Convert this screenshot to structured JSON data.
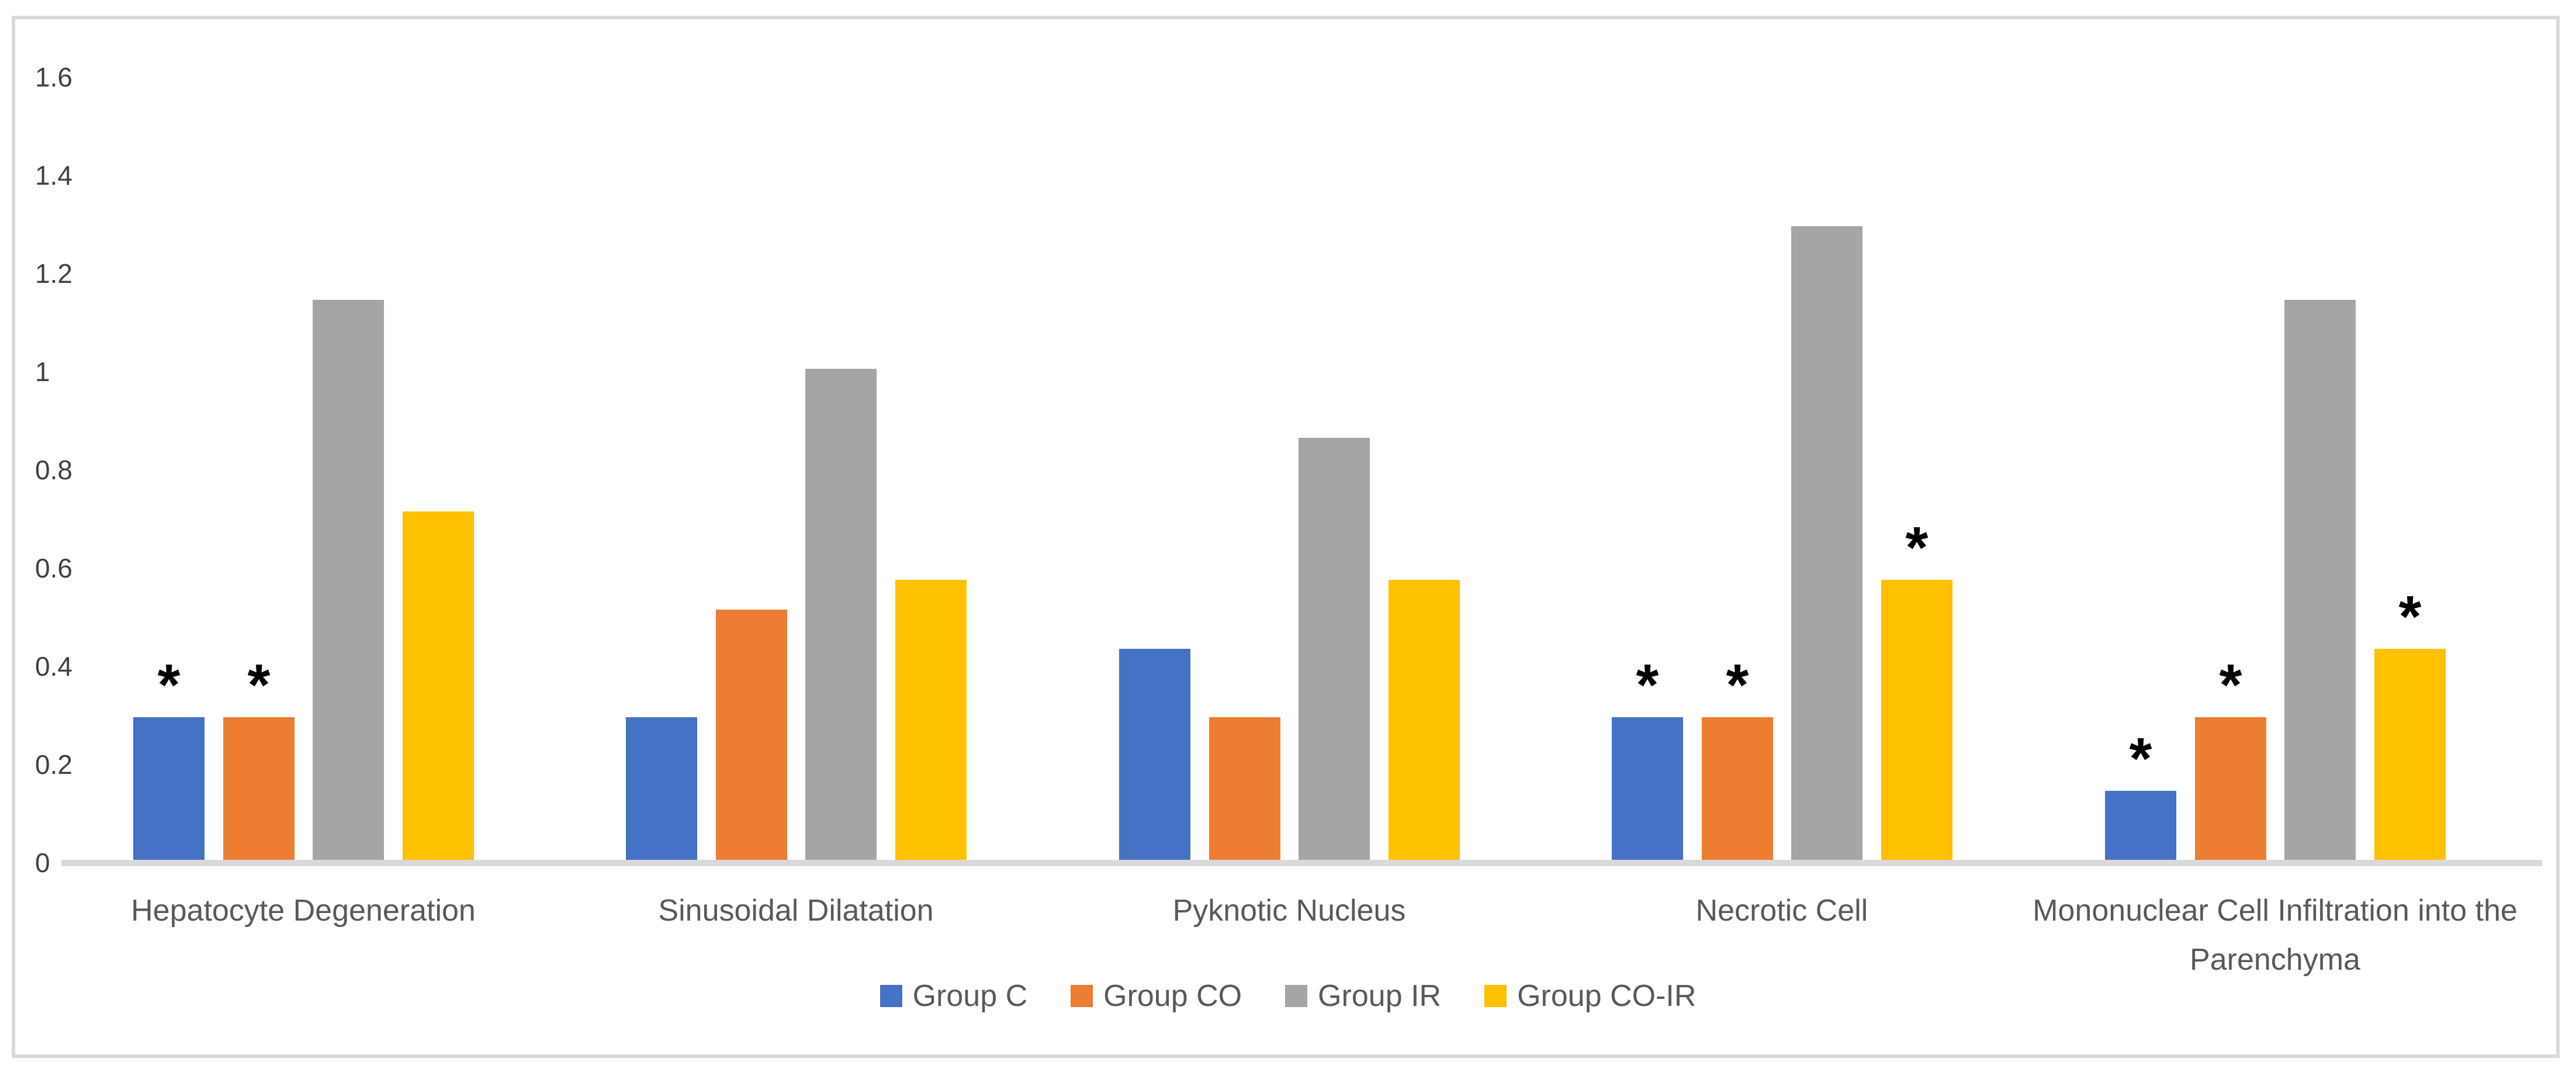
{
  "chart_data": {
    "type": "bar",
    "title": "",
    "categories": [
      "Hepatocyte Degeneration",
      "Sinusoidal Dilatation",
      "Pyknotic Nucleus",
      "Necrotic Cell",
      "Mononuclear Cell Infiltration into the Parenchyma"
    ],
    "series": [
      {
        "name": "Group C",
        "color": "#4472C4",
        "values": [
          0.29,
          0.29,
          0.43,
          0.29,
          0.14
        ],
        "significance": [
          true,
          false,
          false,
          true,
          true
        ]
      },
      {
        "name": "Group CO",
        "color": "#ED7D31",
        "values": [
          0.29,
          0.51,
          0.29,
          0.29,
          0.29
        ],
        "significance": [
          true,
          false,
          false,
          true,
          true
        ]
      },
      {
        "name": "Group IR",
        "color": "#A5A5A5",
        "values": [
          1.14,
          1.0,
          0.86,
          1.29,
          1.14
        ],
        "significance": [
          false,
          false,
          false,
          false,
          false
        ]
      },
      {
        "name": "Group CO-IR",
        "color": "#FFC000",
        "values": [
          0.71,
          0.57,
          0.57,
          0.57,
          0.43
        ],
        "significance": [
          false,
          false,
          false,
          true,
          true
        ]
      }
    ],
    "y_axis": {
      "min": 0,
      "max": 1.6,
      "step": 0.2,
      "tick_labels": [
        "0",
        "0.2",
        "0.4",
        "0.6",
        "0.8",
        "1",
        "1.2",
        "1.4",
        "1.6"
      ]
    },
    "annotations": {
      "significance_marker": "*"
    },
    "legend": {
      "position": "bottom",
      "entries": [
        "Group C",
        "Group CO",
        "Group IR",
        "Group CO-IR"
      ]
    },
    "grid": false,
    "xlabel": "",
    "ylabel": ""
  },
  "colors": {
    "background": "#FFFFFF",
    "chart_border": "#D9D9D9",
    "axis_line": "#D9D9D9",
    "tick_text": "#404040",
    "category_text": "#595959",
    "legend_text": "#595959",
    "significance_marker": "#000000"
  }
}
